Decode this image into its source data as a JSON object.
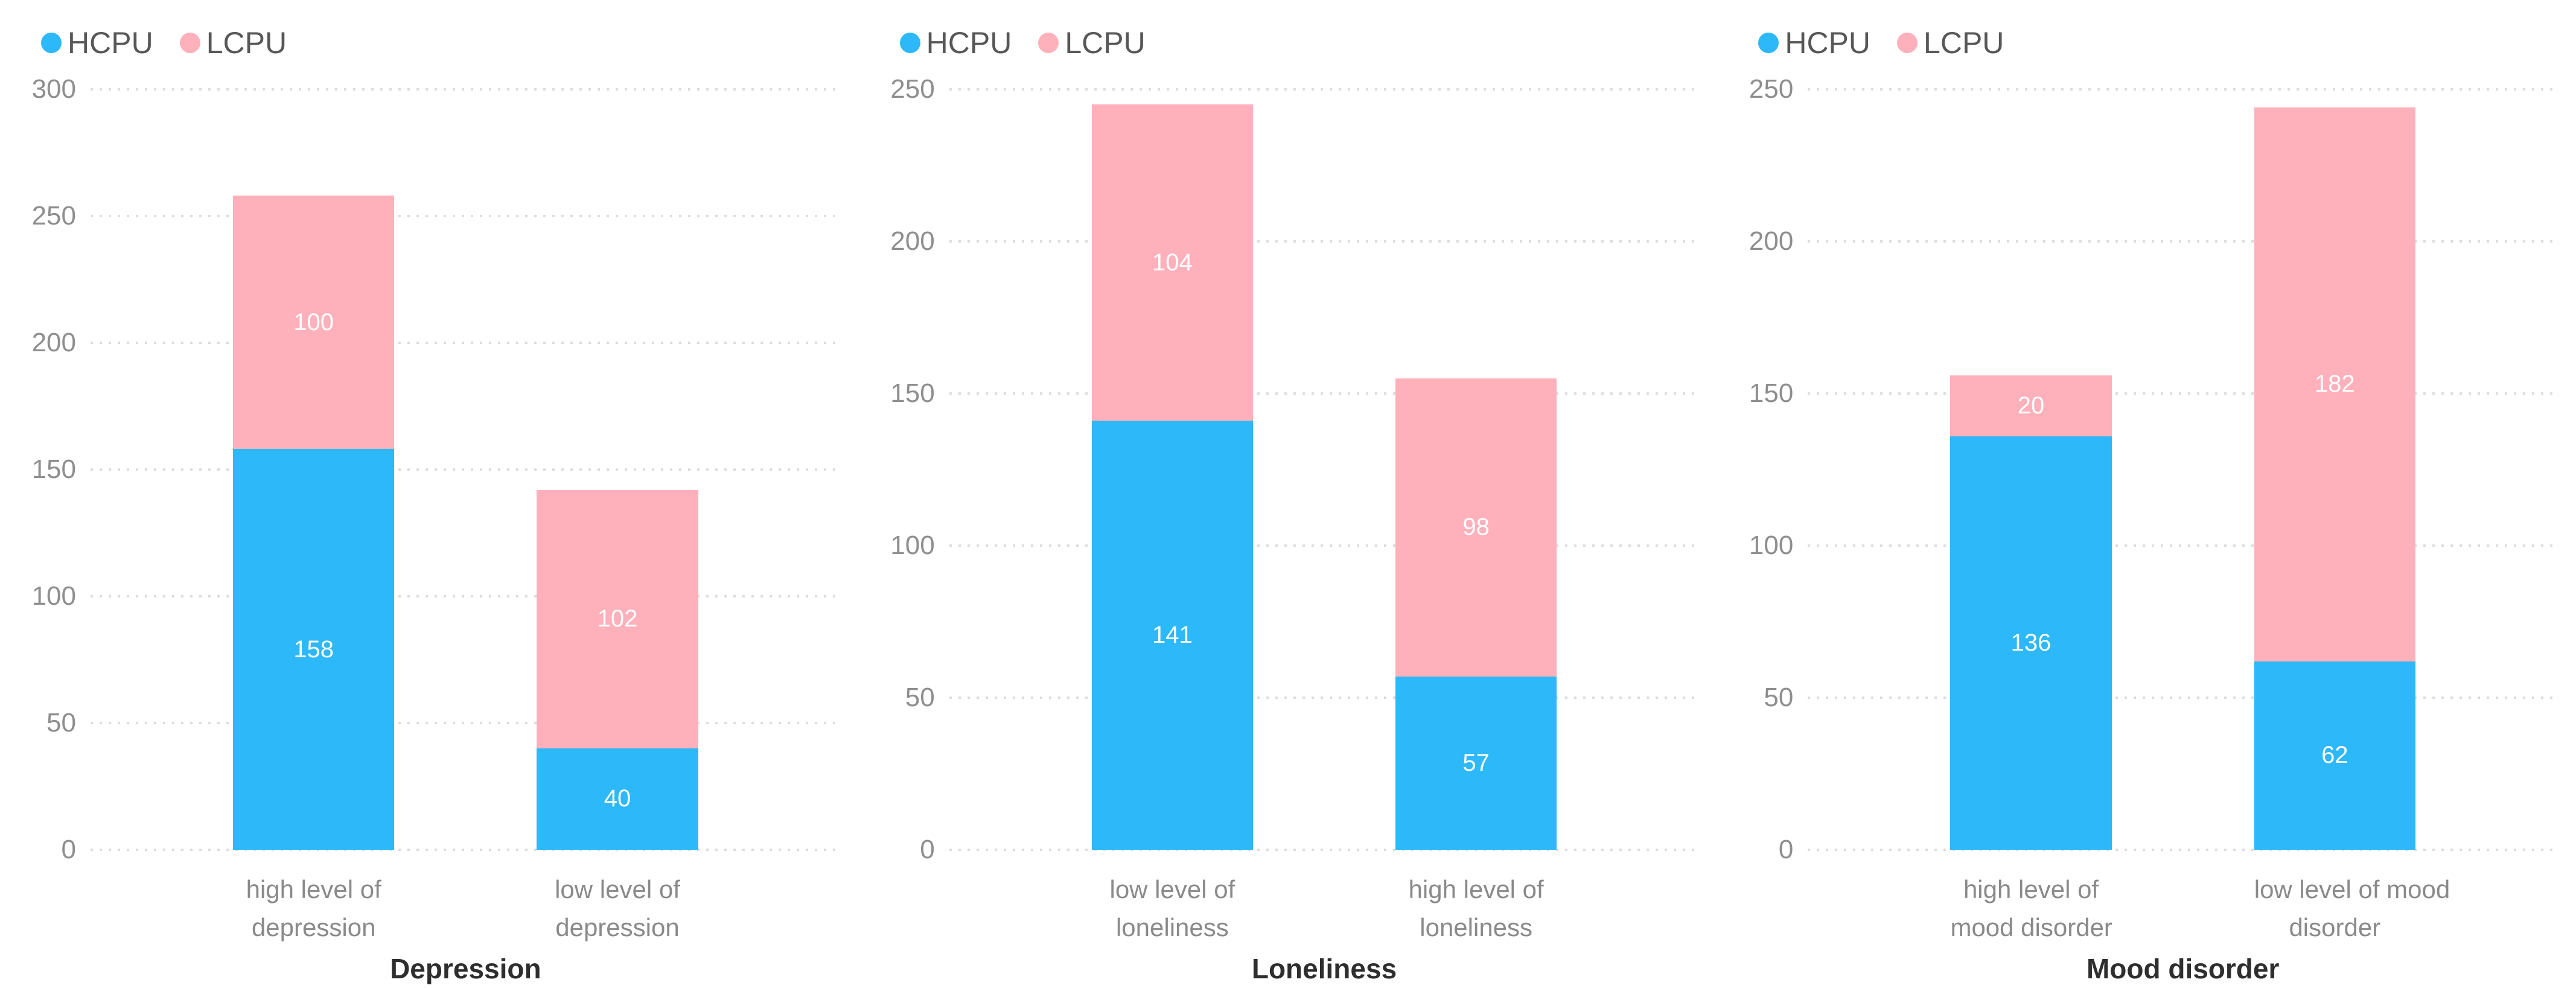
{
  "colors": {
    "hcpu": "#2CB8F9",
    "lcpu": "#FFB1BB",
    "grid": "#DDDDDD",
    "tick_label": "#8E8E8E",
    "category_label": "#8A8A8A",
    "axis_title": "#2E2E2E",
    "legend_label": "#575757",
    "value_label": "#FFFFFF",
    "background": "#FFFFFF"
  },
  "legend": {
    "series": [
      {
        "name": "HCPU",
        "color_key": "hcpu"
      },
      {
        "name": "LCPU",
        "color_key": "lcpu"
      }
    ]
  },
  "chart_data": [
    {
      "id": "depression",
      "type": "bar",
      "stacked": true,
      "title": "Depression",
      "categories": [
        "high level of depression",
        "low level of depression"
      ],
      "category_lines": [
        [
          "high level of",
          "depression"
        ],
        [
          "low level of",
          "depression"
        ]
      ],
      "series": [
        {
          "name": "HCPU",
          "color_key": "hcpu",
          "values": [
            158,
            40
          ]
        },
        {
          "name": "LCPU",
          "color_key": "lcpu",
          "values": [
            100,
            102
          ]
        }
      ],
      "totals": [
        258,
        142
      ],
      "ylim": [
        0,
        300
      ],
      "yticks": [
        0,
        50,
        100,
        150,
        200,
        250,
        300
      ],
      "grid": true,
      "legend_position": "top-left"
    },
    {
      "id": "loneliness",
      "type": "bar",
      "stacked": true,
      "title": "Loneliness",
      "categories": [
        "low level of loneliness",
        "high level of loneliness"
      ],
      "category_lines": [
        [
          "low level of",
          "loneliness"
        ],
        [
          "high level of",
          "loneliness"
        ]
      ],
      "series": [
        {
          "name": "HCPU",
          "color_key": "hcpu",
          "values": [
            141,
            57
          ]
        },
        {
          "name": "LCPU",
          "color_key": "lcpu",
          "values": [
            104,
            98
          ]
        }
      ],
      "totals": [
        245,
        155
      ],
      "ylim": [
        0,
        250
      ],
      "yticks": [
        0,
        50,
        100,
        150,
        200,
        250
      ],
      "grid": true,
      "legend_position": "top-left"
    },
    {
      "id": "mood-disorder",
      "type": "bar",
      "stacked": true,
      "title": "Mood disorder",
      "categories": [
        "high level of mood disorder",
        "low level of mood disorder"
      ],
      "category_lines": [
        [
          "high level of",
          "mood disorder"
        ],
        [
          "low level of mood",
          "disorder"
        ]
      ],
      "series": [
        {
          "name": "HCPU",
          "color_key": "hcpu",
          "values": [
            136,
            62
          ]
        },
        {
          "name": "LCPU",
          "color_key": "lcpu",
          "values": [
            20,
            182
          ]
        }
      ],
      "totals": [
        156,
        244
      ],
      "ylim": [
        0,
        250
      ],
      "yticks": [
        0,
        50,
        100,
        150,
        200,
        250
      ],
      "grid": true,
      "legend_position": "top-left"
    }
  ]
}
